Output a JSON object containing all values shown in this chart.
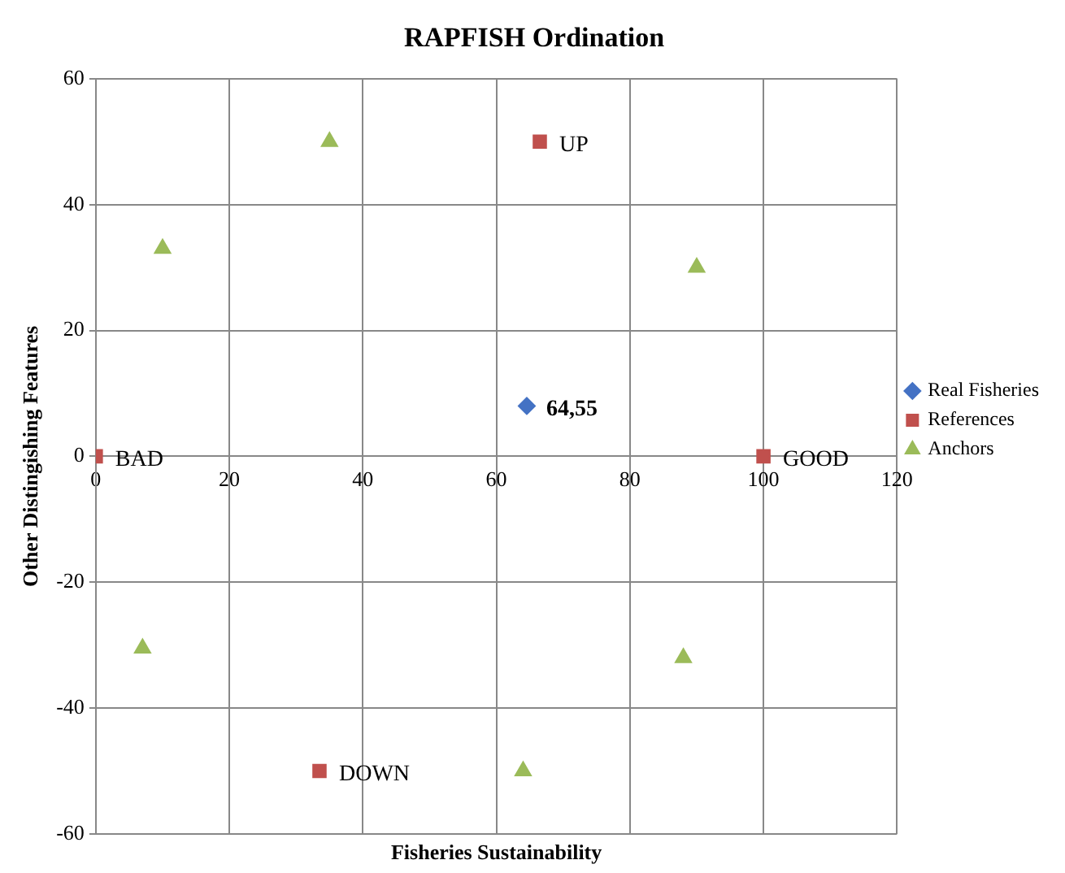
{
  "chart_data": {
    "type": "scatter",
    "title": "RAPFISH Ordination",
    "xlabel": "Fisheries Sustainability",
    "ylabel": "Other Distingishing Features",
    "xlim": [
      0,
      120
    ],
    "xticks": [
      0,
      20,
      40,
      60,
      80,
      100,
      120
    ],
    "ylim": [
      -60,
      60
    ],
    "yticks": [
      -60,
      -40,
      -20,
      0,
      20,
      40,
      60
    ],
    "grid": true,
    "legend": "right",
    "series": [
      {
        "name": "Real Fisheries",
        "color": "#4472c4",
        "marker": "diamond",
        "x": [
          64.55
        ],
        "values": [
          8
        ]
      },
      {
        "name": "References",
        "color": "#c0504d",
        "marker": "square",
        "x": [
          0,
          100,
          66.5,
          33.5
        ],
        "values": [
          0,
          0,
          50,
          -50
        ]
      },
      {
        "name": "Anchors",
        "color": "#9bbb59",
        "marker": "triangle",
        "x": [
          10,
          35,
          90,
          7,
          88,
          64
        ],
        "values": [
          33,
          50,
          30,
          -30.5,
          -32,
          -50
        ]
      }
    ],
    "annotations": [
      {
        "text": "64,55",
        "x": 64.55,
        "y": 8
      },
      {
        "text": "UP",
        "x": 66.5,
        "y": 50
      },
      {
        "text": "DOWN",
        "x": 33.5,
        "y": -50
      },
      {
        "text": "GOOD",
        "x": 100,
        "y": 0
      },
      {
        "text": "BAD",
        "x": 0,
        "y": 0
      }
    ]
  }
}
